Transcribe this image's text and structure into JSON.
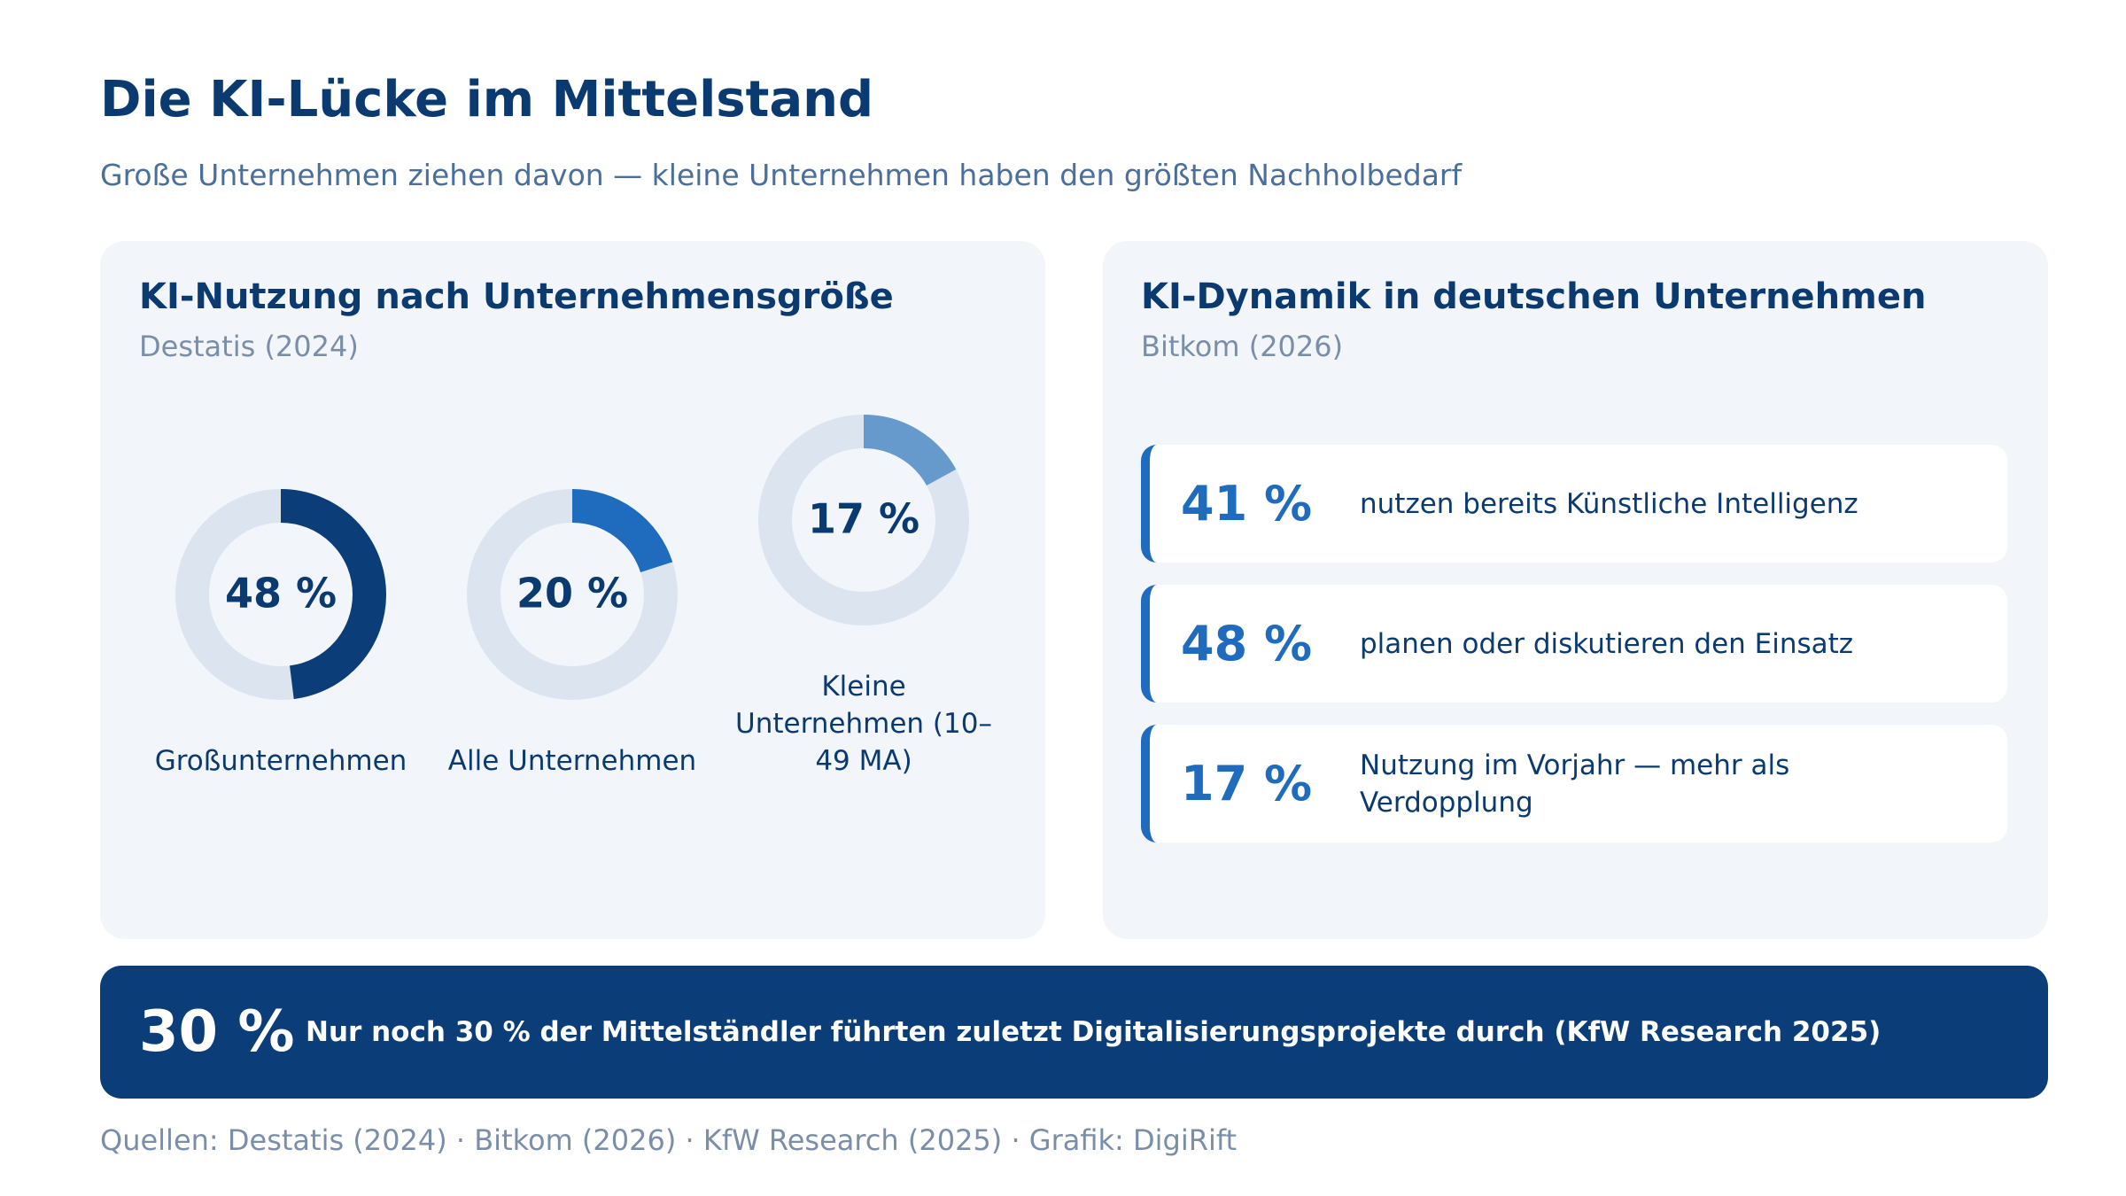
{
  "header": {
    "title": "Die KI-Lücke im Mittelstand",
    "subtitle": "Große Unternehmen ziehen davon — kleine Unternehmen haben den größten Nachholbedarf"
  },
  "chart_data": {
    "type": "donut",
    "title": "KI-Nutzung nach Unternehmensgröße",
    "subtitle": "Destatis (2024)",
    "categories": [
      "Großunternehmen",
      "Alle Unternehmen",
      "Kleine Unternehmen (10–49 MA)"
    ],
    "values": [
      48,
      20,
      17
    ],
    "value_labels": [
      "48 %",
      "20 %",
      "17 %"
    ],
    "colors": [
      "#0b3d78",
      "#1f6bbd",
      "#6699cc"
    ],
    "track_color": "#dce5ef"
  },
  "stats": {
    "title": "KI-Dynamik in deutschen Unternehmen",
    "source": "Bitkom (2026)",
    "items": [
      {
        "value": "41 %",
        "text": "nutzen bereits Künstliche Intelligenz"
      },
      {
        "value": "48 %",
        "text": "planen oder diskutieren den Einsatz"
      },
      {
        "value": "17 %",
        "text": "Nutzung im Vorjahr — mehr als Verdopplung"
      }
    ]
  },
  "banner": {
    "value": "30 %",
    "text": "Nur noch 30 % der Mittelständler führten zuletzt Digitalisierungsprojekte durch (KfW Research 2025)"
  },
  "footer": "Quellen: Destatis (2024) · Bitkom (2026) · KfW Research (2025) · Grafik: DigiRift"
}
